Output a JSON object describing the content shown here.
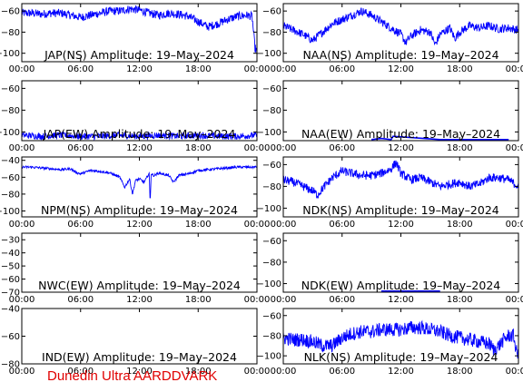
{
  "footer_text": "Dunedin Ultra AARDDVARK",
  "colors": {
    "trace": "#0000ff",
    "axes": "#000000",
    "footer": "#e00000",
    "background": "#ffffff"
  },
  "chart_data": [
    {
      "type": "line",
      "title": "JAP(NS) Amplitude: 19–May–2024",
      "xticks": [
        "00:00",
        "06:00",
        "12:00",
        "18:00",
        "00:00"
      ],
      "xlim": [
        0,
        24
      ],
      "ylim": [
        -108,
        -53
      ],
      "yticks": [
        -60,
        -80,
        -100
      ],
      "noise": 4,
      "series": [
        {
          "x": [
            0,
            1,
            2,
            3,
            4,
            5,
            6,
            7,
            8,
            9,
            10,
            11,
            12,
            13,
            14,
            15,
            16,
            17,
            18,
            19,
            20,
            21,
            22,
            23,
            23.5,
            23.8,
            24
          ],
          "y": [
            -62,
            -62,
            -63,
            -62,
            -62,
            -64,
            -66,
            -64,
            -62,
            -60,
            -60,
            -58,
            -59,
            -62,
            -64,
            -62,
            -63,
            -65,
            -70,
            -75,
            -72,
            -68,
            -65,
            -64,
            -65,
            -95,
            -98
          ]
        }
      ]
    },
    {
      "type": "line",
      "title": "NAA(NS) Amplitude: 19–May–2024",
      "xticks": [
        "00:00",
        "06:00",
        "12:00",
        "18:00",
        "00:00"
      ],
      "xlim": [
        0,
        24
      ],
      "ylim": [
        -108,
        -53
      ],
      "yticks": [
        -60,
        -80,
        -100
      ],
      "noise": 4,
      "series": [
        {
          "x": [
            0,
            1,
            2,
            3,
            4,
            5,
            6,
            7,
            8,
            9,
            10,
            11,
            12,
            12.5,
            13,
            14,
            15,
            15.5,
            16,
            17,
            17.5,
            18,
            19,
            20,
            21,
            22,
            23,
            24
          ],
          "y": [
            -74,
            -78,
            -82,
            -88,
            -80,
            -72,
            -68,
            -64,
            -60,
            -64,
            -70,
            -76,
            -82,
            -90,
            -84,
            -78,
            -80,
            -92,
            -82,
            -76,
            -86,
            -80,
            -74,
            -76,
            -74,
            -77,
            -76,
            -78
          ]
        }
      ]
    },
    {
      "type": "line",
      "title": "JAP(EW) Amplitude: 19–May–2024",
      "xticks": [
        "00:00",
        "06:00",
        "12:00",
        "18:00",
        "00:00"
      ],
      "xlim": [
        0,
        24
      ],
      "ylim": [
        -108,
        -53
      ],
      "yticks": [
        -60,
        -80,
        -100
      ],
      "noise": 3,
      "series": [
        {
          "x": [
            0,
            2,
            4,
            6,
            8,
            10,
            12,
            14,
            16,
            18,
            20,
            22,
            24
          ],
          "y": [
            -103,
            -104,
            -103,
            -104,
            -104,
            -103,
            -104,
            -103,
            -104,
            -103,
            -104,
            -104,
            -103
          ]
        }
      ]
    },
    {
      "type": "line",
      "title": "NAA(EW) Amplitude: 19–May–2024",
      "xticks": [
        "00:00",
        "06:00",
        "12:00",
        "18:00",
        "00:00"
      ],
      "xlim": [
        0,
        24
      ],
      "ylim": [
        -108,
        -53
      ],
      "yticks": [
        -60,
        -80,
        -100
      ],
      "noise": 0,
      "series": [
        {
          "x": [
            9,
            10,
            11,
            11.2,
            16,
            18,
            21,
            23
          ],
          "y": [
            -107,
            -106,
            -107,
            -104,
            -107,
            -107,
            -107,
            -107
          ]
        }
      ]
    },
    {
      "type": "line",
      "title": "NPM(NS) Amplitude: 19–May–2024",
      "xticks": [
        "00:00",
        "06:00",
        "12:00",
        "18:00",
        "00:00"
      ],
      "xlim": [
        0,
        24
      ],
      "ylim": [
        -107,
        -36
      ],
      "yticks": [
        -40,
        -60,
        -80,
        -100
      ],
      "noise": 1.5,
      "series": [
        {
          "x": [
            0,
            1,
            2,
            3,
            4,
            5,
            5.5,
            6,
            6.5,
            7,
            8,
            9,
            10,
            10.5,
            11,
            11.3,
            11.6,
            12,
            12.5,
            13,
            13.1,
            13.2,
            13.5,
            14,
            15,
            15.5,
            16,
            17,
            18,
            20,
            22,
            24
          ],
          "y": [
            -48,
            -48,
            -49,
            -50,
            -51,
            -50,
            -54,
            -56,
            -54,
            -52,
            -53,
            -55,
            -60,
            -72,
            -62,
            -80,
            -64,
            -62,
            -66,
            -55,
            -92,
            -56,
            -58,
            -55,
            -58,
            -66,
            -58,
            -56,
            -52,
            -50,
            -48,
            -48
          ]
        }
      ]
    },
    {
      "type": "line",
      "title": "NDK(NS) Amplitude: 19–May–2024",
      "xticks": [
        "00:00",
        "06:00",
        "12:00",
        "18:00",
        "00:00"
      ],
      "xlim": [
        0,
        24
      ],
      "ylim": [
        -108,
        -53
      ],
      "yticks": [
        -60,
        -80,
        -100
      ],
      "noise": 4,
      "series": [
        {
          "x": [
            0,
            1,
            2,
            3,
            3.5,
            4,
            5,
            6,
            7,
            8,
            9,
            10,
            11,
            11.5,
            12,
            13,
            14,
            15,
            16,
            17,
            18,
            19,
            20,
            21,
            22,
            23,
            24
          ],
          "y": [
            -74,
            -76,
            -80,
            -84,
            -88,
            -82,
            -72,
            -66,
            -68,
            -70,
            -70,
            -68,
            -64,
            -58,
            -68,
            -74,
            -72,
            -76,
            -80,
            -78,
            -76,
            -80,
            -78,
            -72,
            -72,
            -74,
            -80
          ]
        }
      ]
    },
    {
      "type": "line",
      "title": "NWC(EW) Amplitude: 19–May–2024",
      "xticks": [
        "00:00",
        "06:00",
        "12:00",
        "18:00",
        "00:00"
      ],
      "xlim": [
        0,
        24
      ],
      "ylim": [
        -70,
        -25
      ],
      "yticks": [
        -30,
        -40,
        -50,
        -60,
        -70
      ],
      "noise": 0,
      "series": []
    },
    {
      "type": "line",
      "title": "NDK(EW) Amplitude: 19–May–2024",
      "xticks": [
        "00:00",
        "06:00",
        "12:00",
        "18:00",
        "00:00"
      ],
      "xlim": [
        0,
        24
      ],
      "ylim": [
        -108,
        -53
      ],
      "yticks": [
        -60,
        -80,
        -100
      ],
      "noise": 0,
      "series": [
        {
          "x": [
            10,
            10.5,
            11,
            13,
            14,
            16
          ],
          "y": [
            -107,
            -107,
            -107,
            -107,
            -107,
            -107
          ]
        }
      ]
    },
    {
      "type": "line",
      "title": "IND(EW) Amplitude: 19–May–2024",
      "xticks": [
        "00:00",
        "06:00",
        "12:00",
        "18:00",
        "00:00"
      ],
      "xlim": [
        0,
        24
      ],
      "ylim": [
        -80,
        -40
      ],
      "yticks": [
        -40,
        -60,
        -80
      ],
      "noise": 0,
      "series": []
    },
    {
      "type": "line",
      "title": "NLK(NS) Amplitude: 19–May–2024",
      "xticks": [
        "00:00",
        "06:00",
        "12:00",
        "18:00",
        "00:00"
      ],
      "xlim": [
        0,
        24
      ],
      "ylim": [
        -108,
        -53
      ],
      "yticks": [
        -60,
        -80,
        -100
      ],
      "noise": 7,
      "series": [
        {
          "x": [
            0,
            1,
            2,
            3,
            4,
            5,
            6,
            7,
            8,
            9,
            10,
            11,
            12,
            13,
            14,
            15,
            16,
            17,
            18,
            19,
            20,
            21,
            21.5,
            22,
            22.5,
            23,
            23.5,
            23.8,
            24
          ],
          "y": [
            -82,
            -84,
            -84,
            -86,
            -90,
            -90,
            -82,
            -78,
            -76,
            -76,
            -74,
            -74,
            -74,
            -72,
            -72,
            -74,
            -76,
            -80,
            -82,
            -84,
            -86,
            -88,
            -94,
            -90,
            -84,
            -80,
            -80,
            -96,
            -100
          ]
        }
      ]
    }
  ]
}
